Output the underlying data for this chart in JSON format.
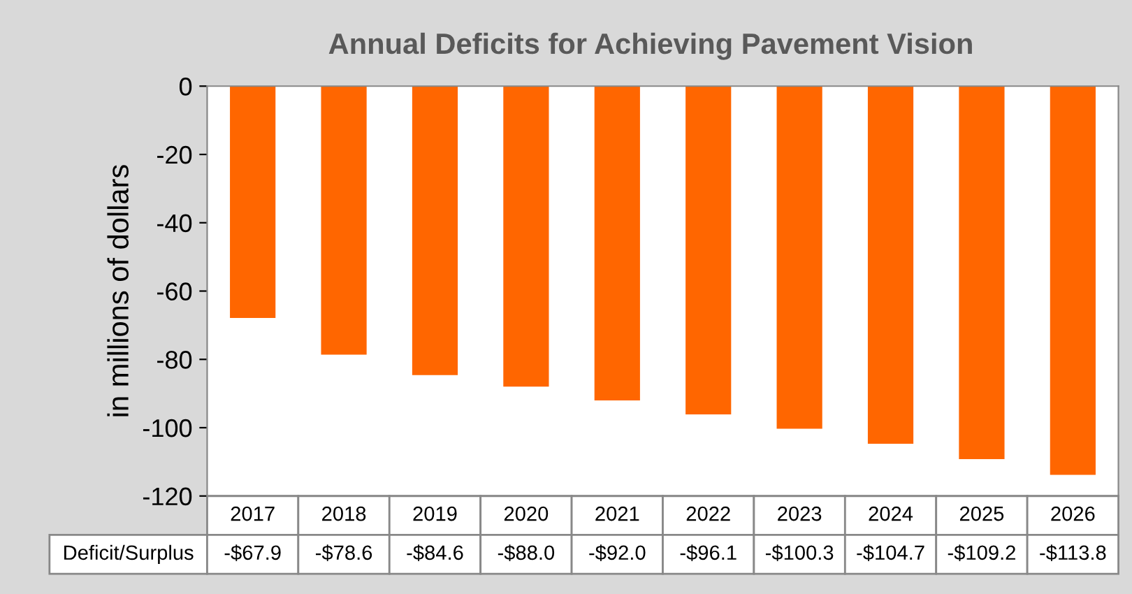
{
  "chart_data": {
    "type": "bar",
    "title": "Annual Deficits for Achieving Pavement Vision",
    "ylabel": "in millions of dollars",
    "categories": [
      "2017",
      "2018",
      "2019",
      "2020",
      "2021",
      "2022",
      "2023",
      "2024",
      "2025",
      "2026"
    ],
    "series": [
      {
        "name": "Deficit/Surplus",
        "color": "#ff6600",
        "values": [
          -67.9,
          -78.6,
          -84.6,
          -88.0,
          -92.0,
          -96.1,
          -100.3,
          -104.7,
          -109.2,
          -113.8
        ],
        "value_labels": [
          "-$67.9",
          "-$78.6",
          "-$84.6",
          "-$88.0",
          "-$92.0",
          "-$96.1",
          "-$100.3",
          "-$104.7",
          "-$109.2",
          "-$113.8"
        ]
      }
    ],
    "ylim": [
      -120,
      0
    ],
    "yticks": [
      -120,
      -100,
      -80,
      -60,
      -40,
      -20,
      0
    ],
    "grid": false,
    "legend": false
  }
}
